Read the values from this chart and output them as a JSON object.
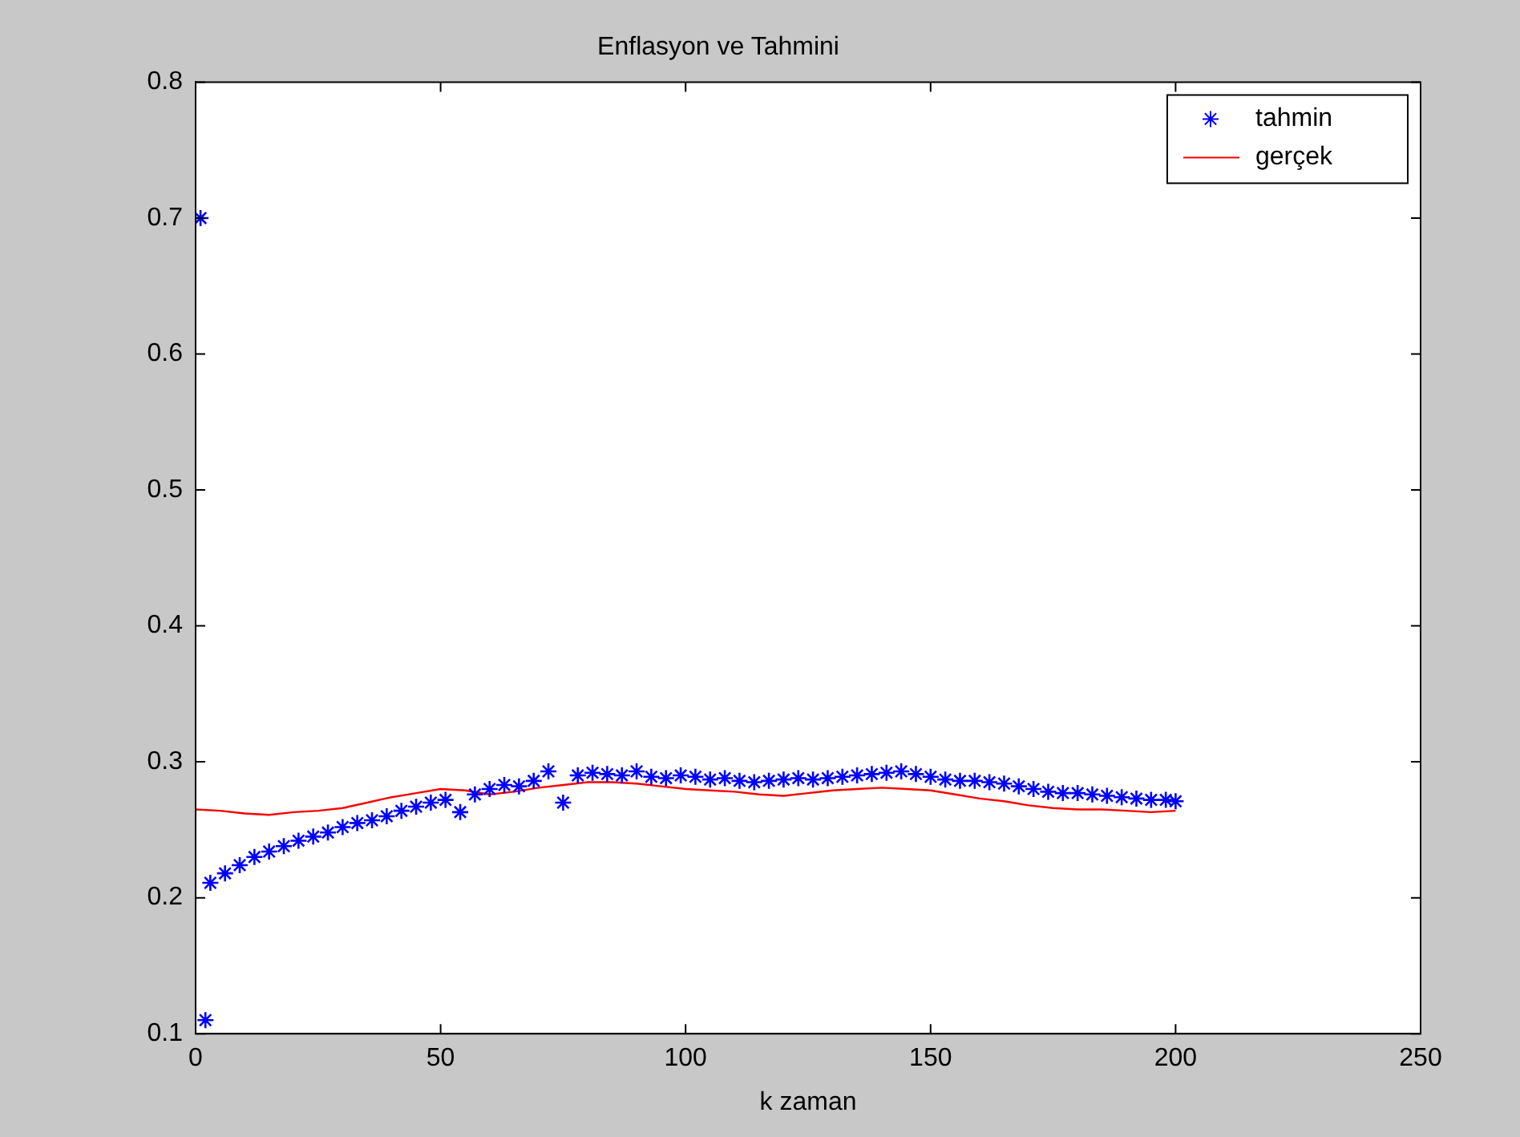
{
  "chart_data": {
    "type": "line",
    "title": "Enflasyon ve Tahmini",
    "xlabel": "k zaman",
    "xlim": [
      0,
      250
    ],
    "xticks": [
      0,
      50,
      100,
      150,
      200,
      250
    ],
    "ylim": [
      0.1,
      0.8
    ],
    "yticks": [
      0.1,
      0.2,
      0.3,
      0.4,
      0.5,
      0.6,
      0.7,
      0.8
    ],
    "grid": false,
    "legend": "top right",
    "series": [
      {
        "name": "tahmin",
        "type": "scatter",
        "marker": "cross",
        "color": "#0000ff",
        "x": [
          1,
          2,
          3,
          6,
          9,
          12,
          15,
          18,
          21,
          24,
          27,
          30,
          33,
          36,
          39,
          42,
          45,
          48,
          51,
          54,
          57,
          60,
          63,
          66,
          69,
          72,
          75,
          78,
          81,
          84,
          87,
          90,
          93,
          96,
          99,
          102,
          105,
          108,
          111,
          114,
          117,
          120,
          123,
          126,
          129,
          132,
          135,
          138,
          141,
          144,
          147,
          150,
          153,
          156,
          159,
          162,
          165,
          168,
          171,
          174,
          177,
          180,
          183,
          186,
          189,
          192,
          195,
          198,
          200
        ],
        "values": [
          0.7,
          0.11,
          0.211,
          0.218,
          0.224,
          0.23,
          0.234,
          0.238,
          0.242,
          0.245,
          0.248,
          0.252,
          0.255,
          0.257,
          0.26,
          0.264,
          0.267,
          0.27,
          0.272,
          0.263,
          0.276,
          0.28,
          0.283,
          0.282,
          0.286,
          0.293,
          0.27,
          0.29,
          0.292,
          0.291,
          0.29,
          0.293,
          0.289,
          0.288,
          0.29,
          0.289,
          0.287,
          0.288,
          0.286,
          0.285,
          0.286,
          0.287,
          0.288,
          0.287,
          0.288,
          0.289,
          0.29,
          0.291,
          0.292,
          0.293,
          0.291,
          0.289,
          0.287,
          0.286,
          0.286,
          0.285,
          0.284,
          0.282,
          0.28,
          0.278,
          0.277,
          0.277,
          0.276,
          0.275,
          0.274,
          0.273,
          0.272,
          0.272,
          0.271
        ]
      },
      {
        "name": "gerçek",
        "type": "line",
        "marker": "none",
        "line_style": "solid",
        "color": "#ff0000",
        "x": [
          0,
          5,
          10,
          15,
          20,
          25,
          30,
          35,
          40,
          45,
          50,
          55,
          60,
          65,
          70,
          75,
          80,
          85,
          90,
          95,
          100,
          105,
          110,
          115,
          120,
          125,
          130,
          135,
          140,
          145,
          150,
          155,
          160,
          165,
          170,
          175,
          180,
          185,
          190,
          195,
          200
        ],
        "values": [
          0.265,
          0.264,
          0.262,
          0.261,
          0.263,
          0.264,
          0.266,
          0.27,
          0.274,
          0.277,
          0.28,
          0.279,
          0.276,
          0.278,
          0.281,
          0.283,
          0.285,
          0.285,
          0.284,
          0.282,
          0.28,
          0.279,
          0.278,
          0.276,
          0.275,
          0.277,
          0.279,
          0.28,
          0.281,
          0.28,
          0.279,
          0.276,
          0.273,
          0.271,
          0.268,
          0.266,
          0.265,
          0.265,
          0.264,
          0.263,
          0.264
        ]
      }
    ]
  }
}
